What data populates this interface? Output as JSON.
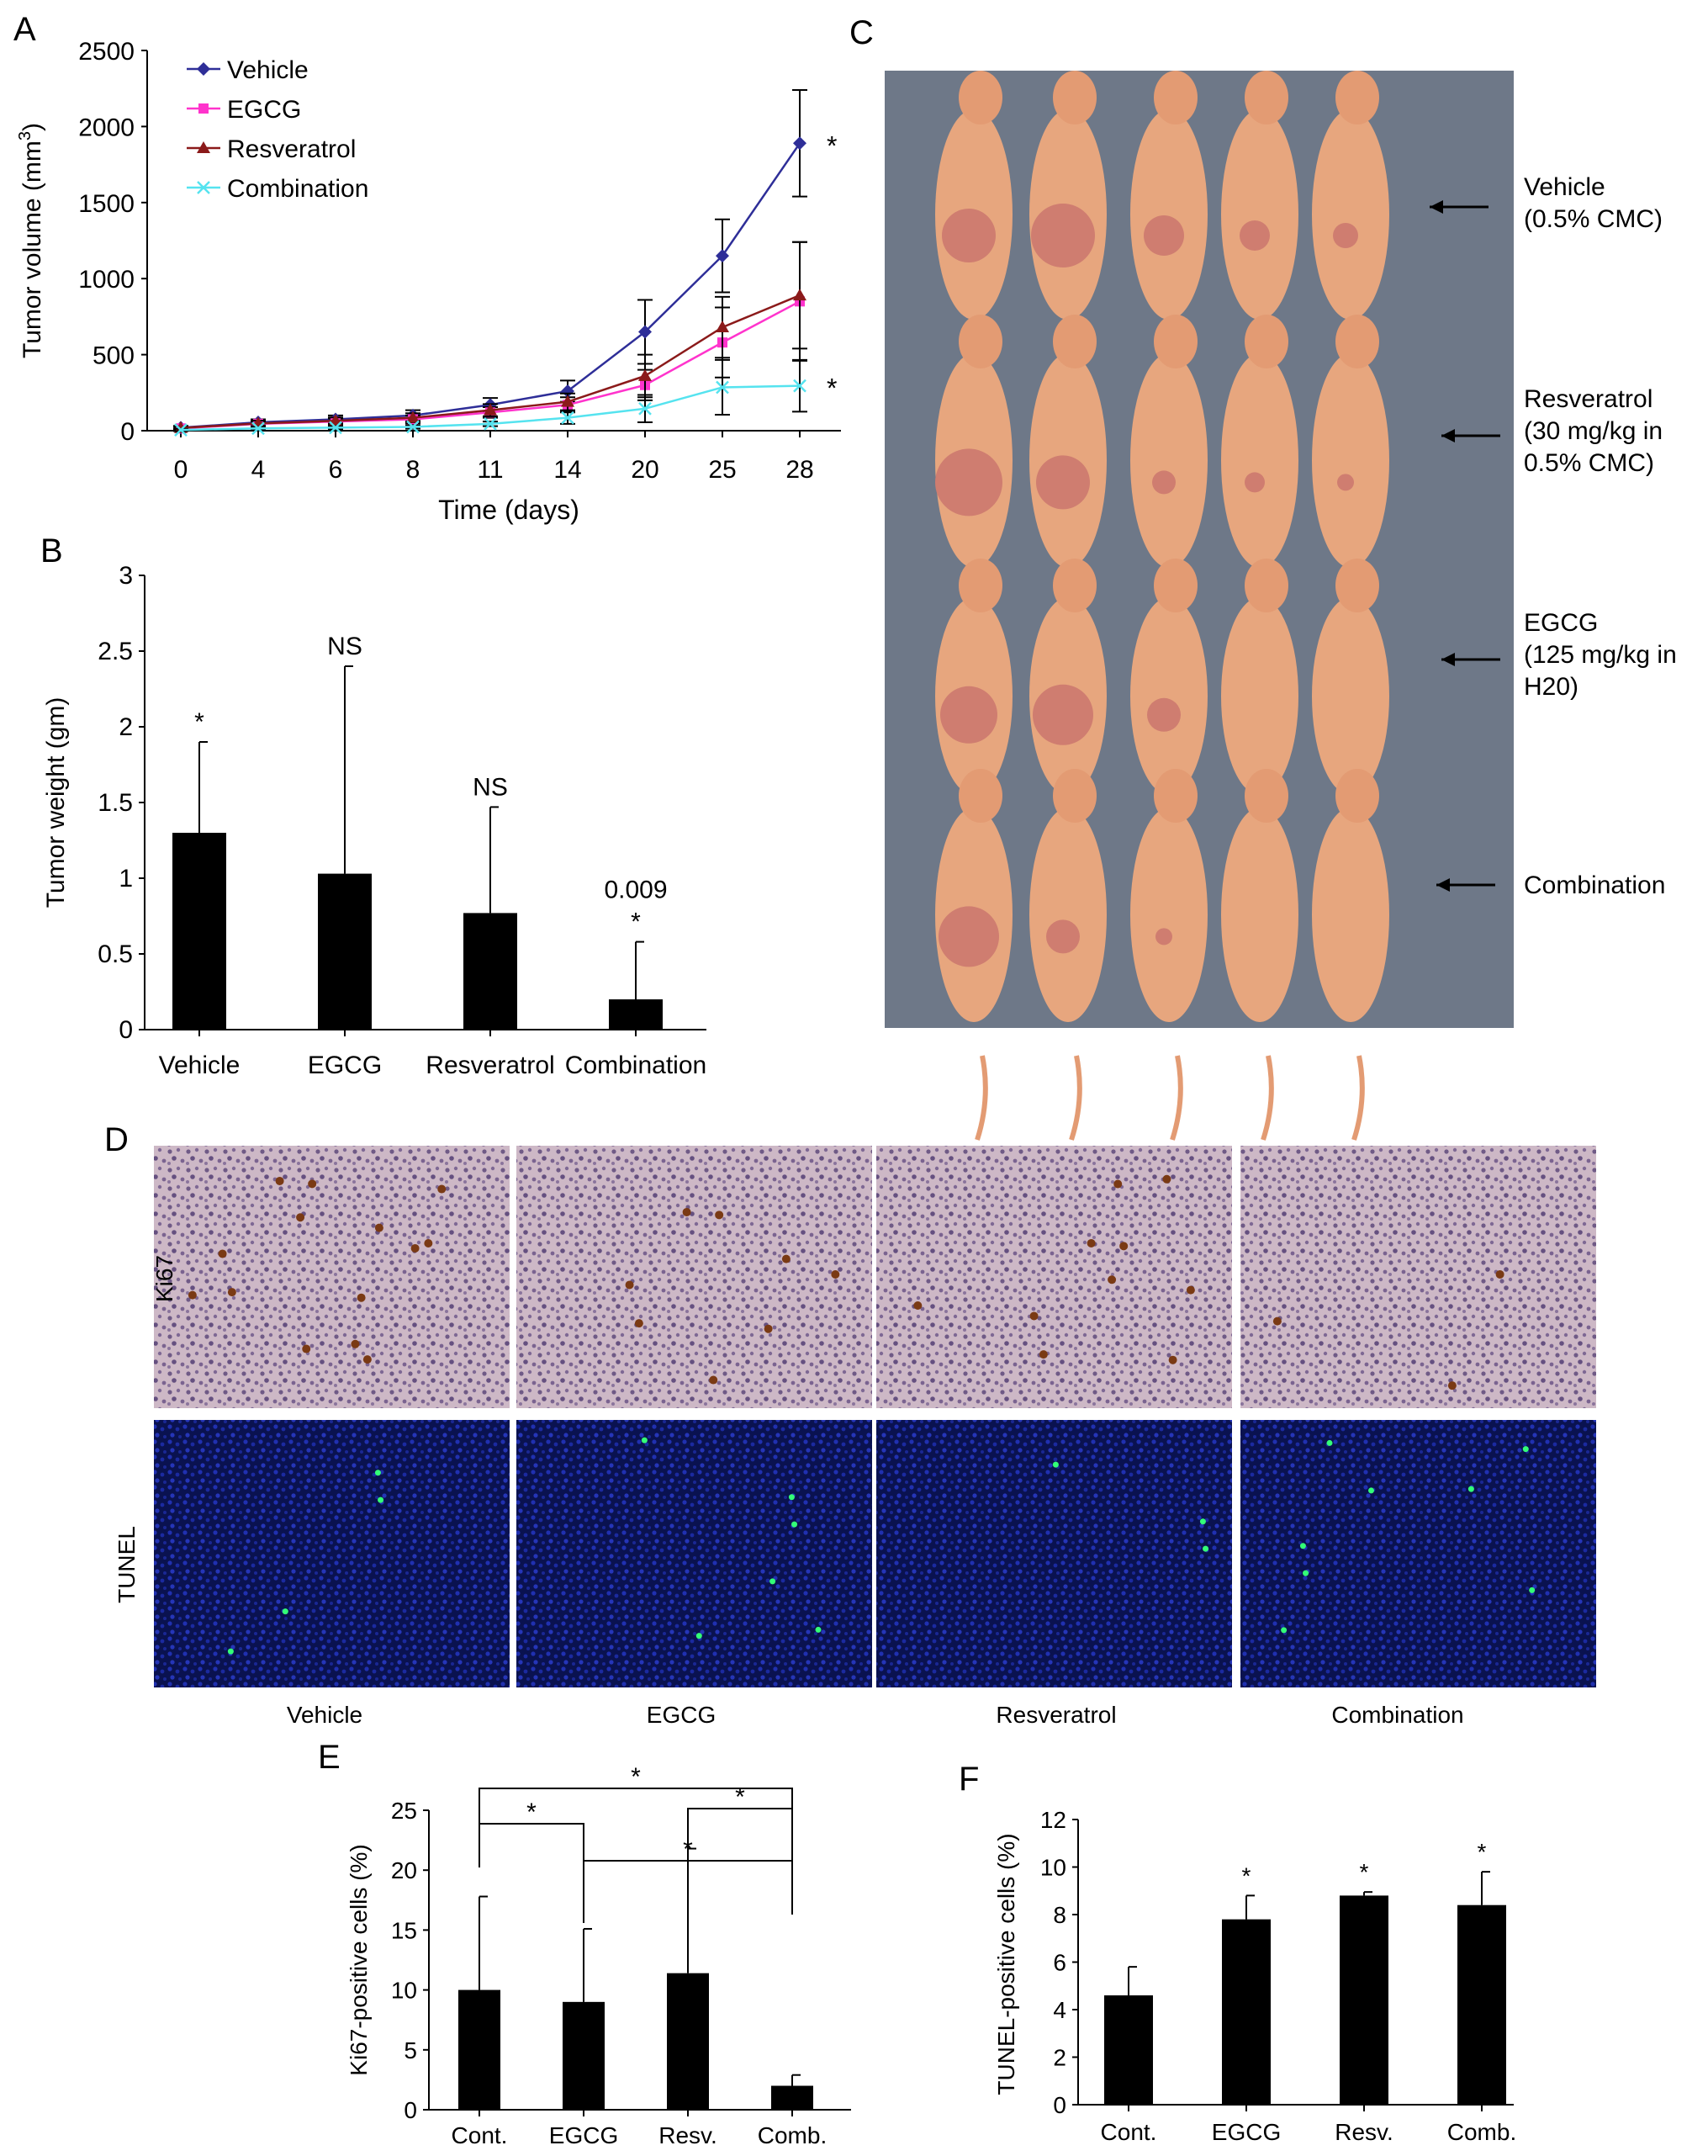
{
  "panel_letters": {
    "a": "A",
    "b": "B",
    "c": "C",
    "d": "D",
    "e": "E",
    "f": "F"
  },
  "colors": {
    "vehicle": "#2e2e98",
    "egcg": "#ff33cc",
    "resveratrol": "#8b1a1a",
    "combination": "#55e3ef",
    "bar": "#000000",
    "photo_background": "#6e7888",
    "mouse": "#e7a67e",
    "ki67_tissue": "#cdb8c6",
    "tunel_background": "#0a1250",
    "tunel_nuclei": "#2030b0",
    "tunel_positive": "#33ff77"
  },
  "chart_data": [
    {
      "id": "A",
      "type": "line",
      "xlabel": "Time (days)",
      "ylabel_main": "Tumor volume (mm",
      "ylabel_sup": "3",
      "ylabel_end": ")",
      "x": [
        "0",
        "4",
        "6",
        "8",
        "11",
        "14",
        "20",
        "25",
        "28"
      ],
      "yticks": [
        "0",
        "500",
        "1000",
        "1500",
        "2000",
        "2500"
      ],
      "ylim": [
        0,
        2500
      ],
      "legend_position": "top-left",
      "series": [
        {
          "name": "Vehicle",
          "color": "#2e2e98",
          "marker": "diamond",
          "values": [
            20,
            55,
            75,
            100,
            170,
            260,
            650,
            1150,
            1890
          ],
          "err": [
            12,
            20,
            25,
            35,
            45,
            70,
            210,
            240,
            350
          ],
          "star": "*"
        },
        {
          "name": "EGCG",
          "color": "#ff33cc",
          "marker": "square",
          "values": [
            15,
            45,
            60,
            75,
            120,
            170,
            300,
            580,
            850
          ],
          "err": [
            10,
            15,
            20,
            25,
            35,
            50,
            100,
            230,
            390
          ],
          "star": ""
        },
        {
          "name": "Resveratrol",
          "color": "#8b1a1a",
          "marker": "triangle",
          "values": [
            18,
            48,
            65,
            85,
            135,
            190,
            360,
            680,
            890
          ],
          "err": [
            10,
            18,
            22,
            30,
            40,
            55,
            140,
            200,
            350
          ],
          "star": ""
        },
        {
          "name": "Combination",
          "color": "#55e3ef",
          "marker": "cross",
          "values": [
            5,
            15,
            20,
            25,
            45,
            85,
            145,
            285,
            295
          ],
          "err": [
            8,
            10,
            10,
            12,
            15,
            40,
            90,
            180,
            170
          ],
          "star": "*"
        }
      ]
    },
    {
      "id": "B",
      "type": "bar",
      "categories": [
        "Vehicle",
        "EGCG",
        "Resveratrol",
        "Combination"
      ],
      "values": [
        1.3,
        1.03,
        0.77,
        0.2
      ],
      "err_up": [
        1.9,
        2.4,
        1.47,
        0.58
      ],
      "annotations": [
        [
          "*"
        ],
        [
          "NS"
        ],
        [
          "NS"
        ],
        [
          "0.009",
          "*"
        ]
      ],
      "ylabel": "Tumor weight (gm)",
      "yticks": [
        "0",
        "0.5",
        "1",
        "1.5",
        "2",
        "2.5",
        "3"
      ],
      "ylim": [
        0,
        3
      ]
    },
    {
      "id": "E",
      "type": "bar",
      "categories": [
        "Cont.",
        "EGCG",
        "Resv.",
        "Comb."
      ],
      "values": [
        10,
        9,
        11.4,
        2
      ],
      "err_up": [
        17.8,
        15.1,
        21.8,
        2.9
      ],
      "ylabel": "Ki67-positive cells (%)",
      "yticks": [
        "0",
        "5",
        "10",
        "15",
        "20",
        "25"
      ],
      "ylim": [
        0,
        25
      ],
      "brackets": [
        {
          "from": "Cont.",
          "to": "EGCG",
          "label": "*"
        },
        {
          "from": "Cont.",
          "to": "Comb.",
          "label": "*"
        },
        {
          "from": "EGCG",
          "to": "Comb.",
          "label": "*"
        },
        {
          "from": "Resv.",
          "to": "Comb.",
          "label": "*"
        }
      ]
    },
    {
      "id": "F",
      "type": "bar",
      "categories": [
        "Cont.",
        "EGCG",
        "Resv.",
        "Comb."
      ],
      "values": [
        4.6,
        7.8,
        8.8,
        8.4
      ],
      "err_up": [
        5.8,
        8.8,
        8.95,
        9.8
      ],
      "annotations": [
        [
          ""
        ],
        [
          "*"
        ],
        [
          "*"
        ],
        [
          "*"
        ]
      ],
      "ylabel": "TUNEL-positive cells (%)",
      "yticks": [
        "0",
        "2",
        "4",
        "6",
        "8",
        "10",
        "12"
      ],
      "ylim": [
        0,
        12
      ]
    }
  ],
  "photo": {
    "labels": [
      {
        "id": "vehicle",
        "lines": [
          "Vehicle",
          "(0.5% CMC)"
        ]
      },
      {
        "id": "resveratrol",
        "lines": [
          "Resveratrol",
          "(30 mg/kg in",
          "0.5% CMC)"
        ]
      },
      {
        "id": "egcg",
        "lines": [
          "EGCG",
          "(125 mg/kg in",
          "H20)"
        ]
      },
      {
        "id": "combination",
        "lines": [
          "Combination"
        ]
      }
    ]
  },
  "micrographs": {
    "row_labels": [
      "Ki67",
      "TUNEL"
    ],
    "col_labels": [
      "Vehicle",
      "EGCG",
      "Resveratrol",
      "Combination"
    ]
  }
}
